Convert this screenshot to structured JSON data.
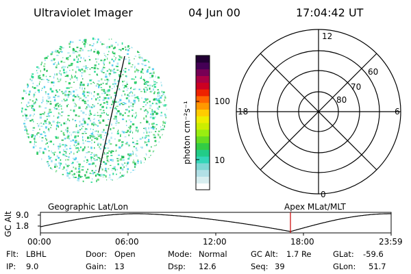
{
  "header": {
    "title": "Ultraviolet Imager",
    "date": "04 Jun 00",
    "time": "17:04:42 UT"
  },
  "colorbar": {
    "unit_label": "photon cm⁻²s⁻¹",
    "tick_labels": [
      "100",
      "10"
    ],
    "colors": [
      "#ffffff",
      "#d8eef0",
      "#b2e0e6",
      "#7fd8d4",
      "#33d6b8",
      "#22cc88",
      "#33cc44",
      "#66dd22",
      "#99ee11",
      "#ccee00",
      "#eeee00",
      "#ffcc00",
      "#ff9900",
      "#ff6600",
      "#ee2200",
      "#cc0022",
      "#aa0044",
      "#770055",
      "#440055",
      "#220033"
    ]
  },
  "polar_plot": {
    "mlt_labels": {
      "top": "12",
      "left": "18",
      "right": "6",
      "bottom": "0"
    },
    "lat_labels": [
      "60",
      "70",
      "80"
    ]
  },
  "geo_panel": {
    "left_label": "Geographic Lat/Lon",
    "right_label": "Apex MLat/MLT"
  },
  "altitude_plot": {
    "axis_label": "GC Alt",
    "y_ticks": [
      "9.0",
      "1.8"
    ],
    "x_ticks": [
      "00:00",
      "06:00",
      "12:00",
      "18:00",
      "23:59"
    ],
    "marker_color": "#cc0000",
    "line_color": "#000000"
  },
  "info": {
    "flt_label": "Flt:",
    "flt_value": "LBHL",
    "ip_label": "IP:",
    "ip_value": "9.0",
    "door_label": "Door:",
    "door_value": "Open",
    "gain_label": "Gain:",
    "gain_value": "13",
    "mode_label": "Mode:",
    "mode_value": "Normal",
    "dsp_label": "Dsp:",
    "dsp_value": "12.6",
    "gcalt_label": "GC Alt:",
    "gcalt_value": "1.7 Re",
    "seq_label": "Seq:",
    "seq_value": "39",
    "glat_label": "GLat:",
    "glat_value": "-59.6",
    "glon_label": "GLon:",
    "glon_value": "51.7"
  }
}
